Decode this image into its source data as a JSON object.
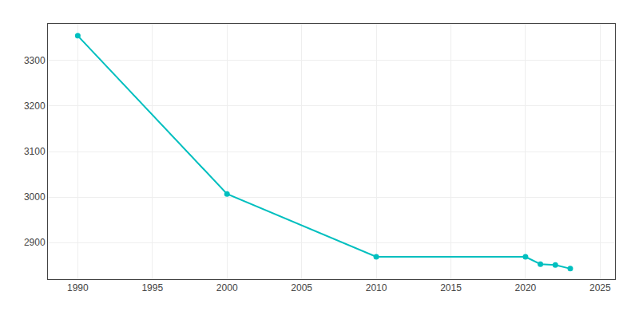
{
  "chart_data": {
    "type": "line",
    "x": [
      1990,
      2000,
      2010,
      2020,
      2021,
      2022,
      2023
    ],
    "values": [
      3354,
      3007,
      2869,
      2869,
      2853,
      2851,
      2843
    ],
    "color": "#00BFBF",
    "marker": "circle",
    "xlim": [
      1988,
      2026
    ],
    "ylim": [
      2820,
      3380
    ],
    "xticks": [
      1990,
      1995,
      2000,
      2005,
      2010,
      2015,
      2020,
      2025
    ],
    "yticks": [
      2900,
      3000,
      3100,
      3200,
      3300
    ],
    "grid": true
  }
}
